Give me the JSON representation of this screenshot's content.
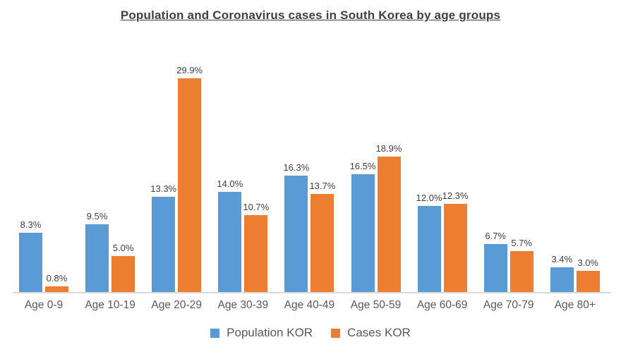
{
  "chart_data": {
    "type": "bar",
    "title": "Population and Coronavirus cases in South Korea by age groups",
    "categories": [
      "Age 0-9",
      "Age 10-19",
      "Age 20-29",
      "Age 30-39",
      "Age 40-49",
      "Age 50-59",
      "Age 60-69",
      "Age 70-79",
      "Age 80+"
    ],
    "series": [
      {
        "name": "Population KOR",
        "color": "#5B9BD5",
        "values": [
          8.3,
          9.5,
          13.3,
          14.0,
          16.3,
          16.5,
          12.0,
          6.7,
          3.4
        ]
      },
      {
        "name": "Cases KOR",
        "color": "#ED7D31",
        "values": [
          0.8,
          5.0,
          29.9,
          10.7,
          13.7,
          18.9,
          12.3,
          5.7,
          3.0
        ]
      }
    ],
    "data_label_suffix": "%",
    "data_label_decimals": 1,
    "xlabel": "",
    "ylabel": "",
    "ylim": [
      0,
      30
    ],
    "grid": false,
    "y_axis_visible": false,
    "legend_position": "bottom"
  },
  "colors": {
    "population_bar": "#5B9BD5",
    "cases_bar": "#ED7D31",
    "title_text": "#404040",
    "data_label_text": "#404040",
    "category_label_text": "#595959",
    "axis_line": "#D9D9D9",
    "background": "#FFFFFF"
  }
}
